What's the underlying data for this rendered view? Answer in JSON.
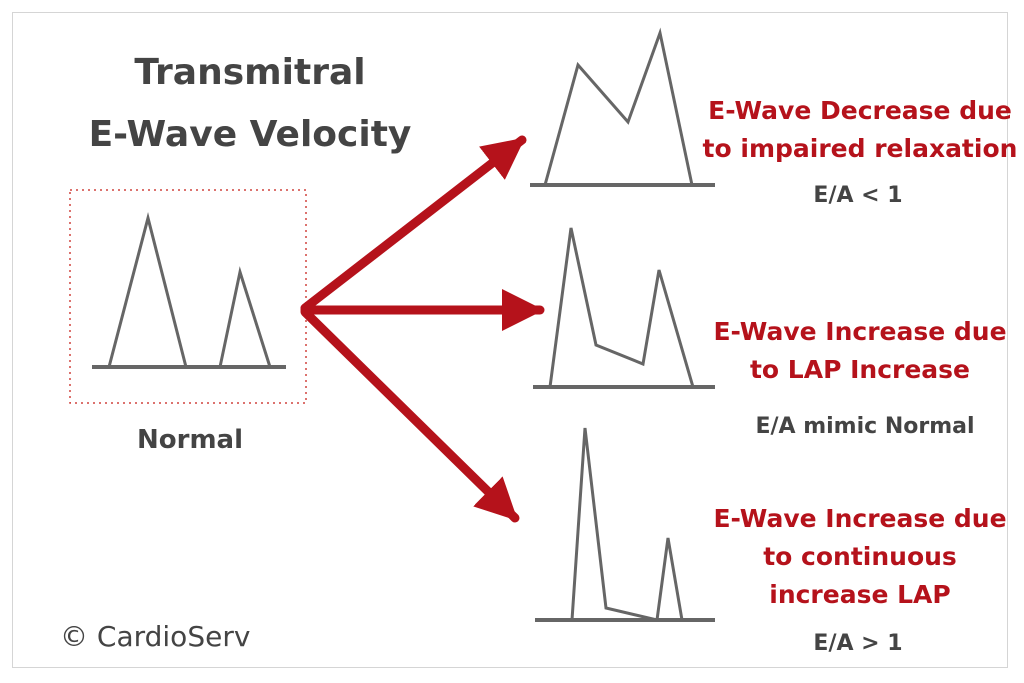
{
  "title": {
    "line1": "Transmitral",
    "line2": "E-Wave Velocity"
  },
  "normal": {
    "label": "Normal"
  },
  "copyright": "© CardioServ",
  "outcomes": [
    {
      "description": [
        "E-Wave Decrease due",
        "to impaired relaxation"
      ],
      "ratio": "E/A < 1"
    },
    {
      "description": [
        "E-Wave Increase due",
        "to LAP Increase"
      ],
      "ratio": "E/A mimic Normal"
    },
    {
      "description": [
        "E-Wave Increase due",
        "to continuous",
        "increase LAP"
      ],
      "ratio": "E/A > 1"
    }
  ],
  "colors": {
    "accent": "#b5121b",
    "text": "#444444",
    "waveform": "#666666"
  }
}
